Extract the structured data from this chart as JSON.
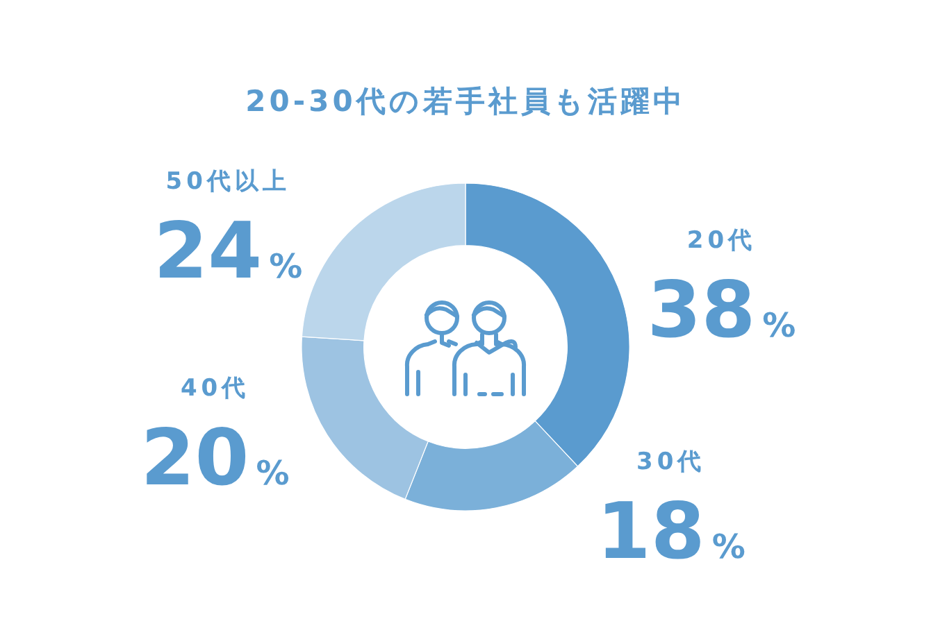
{
  "chart_data": {
    "type": "donut",
    "title": "20-30代の若手社員も活躍中",
    "categories": [
      "20代",
      "30代",
      "40代",
      "50代以上"
    ],
    "values": [
      38,
      18,
      20,
      24
    ],
    "colors": [
      "#5a9bcf",
      "#7bb0d9",
      "#9dc3e2",
      "#bbd6eb"
    ],
    "value_labels": [
      "38%",
      "18%",
      "20%",
      "24%"
    ]
  }
}
